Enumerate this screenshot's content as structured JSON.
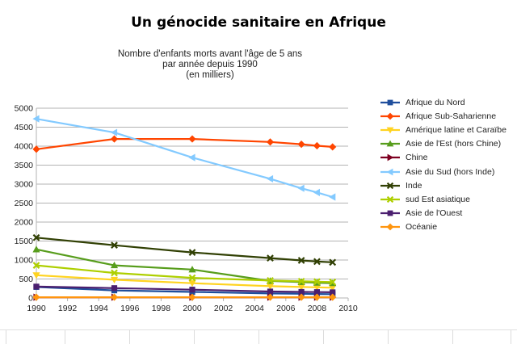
{
  "title": "Un génocide sanitaire en Afrique",
  "chart_data": {
    "type": "line",
    "subtitle_lines": [
      "Nombre d'enfants morts avant l'âge de 5 ans",
      "par année depuis 1990",
      "(en milliers)"
    ],
    "xlim": [
      1990,
      2010
    ],
    "xticks": [
      1990,
      1992,
      1994,
      1996,
      1998,
      2000,
      2002,
      2004,
      2006,
      2008,
      2010
    ],
    "ylim": [
      0,
      5000
    ],
    "yticks": [
      0,
      500,
      1000,
      1500,
      2000,
      2500,
      3000,
      3500,
      4000,
      4500,
      5000
    ],
    "grid": "horizontal",
    "legend_position": "right",
    "x": [
      1990,
      1995,
      2000,
      2005,
      2007,
      2008,
      2009
    ],
    "series": [
      {
        "name": "Afrique du Nord",
        "color": "#1f4e9c",
        "marker": "square",
        "values": [
          290,
          200,
          160,
          120,
          110,
          105,
          100
        ]
      },
      {
        "name": "Afrique Sub-Saharienne",
        "color": "#ff4500",
        "marker": "diamond",
        "values": [
          3920,
          4190,
          4190,
          4110,
          4050,
          4010,
          3980
        ]
      },
      {
        "name": "Amérique latine et Caraïbe",
        "color": "#ffd320",
        "marker": "triangle-down",
        "values": [
          600,
          480,
          390,
          310,
          290,
          280,
          270
        ]
      },
      {
        "name": "Asie de l'Est (hors Chine)",
        "color": "#579d1c",
        "marker": "triangle-up",
        "values": [
          1280,
          860,
          750,
          450,
          420,
          400,
          390
        ]
      },
      {
        "name": "Chine",
        "color": "#7e0021",
        "marker": "triangle-right",
        "values": [
          20,
          20,
          20,
          20,
          20,
          20,
          20
        ]
      },
      {
        "name": "Asie du Sud (hors Inde)",
        "color": "#83caff",
        "marker": "triangle-left",
        "values": [
          4720,
          4360,
          3700,
          3140,
          2890,
          2780,
          2660
        ]
      },
      {
        "name": "Inde",
        "color": "#314004",
        "marker": "x",
        "values": [
          1590,
          1390,
          1200,
          1050,
          990,
          960,
          940
        ]
      },
      {
        "name": "sud Est asiatique",
        "color": "#aecf00",
        "marker": "x",
        "values": [
          860,
          660,
          530,
          460,
          440,
          430,
          420
        ]
      },
      {
        "name": "Asie de l'Ouest",
        "color": "#4b1f6f",
        "marker": "square",
        "values": [
          300,
          260,
          220,
          170,
          160,
          155,
          150
        ]
      },
      {
        "name": "Océanie",
        "color": "#ff950e",
        "marker": "diamond",
        "values": [
          20,
          20,
          20,
          20,
          20,
          20,
          20
        ]
      }
    ]
  }
}
